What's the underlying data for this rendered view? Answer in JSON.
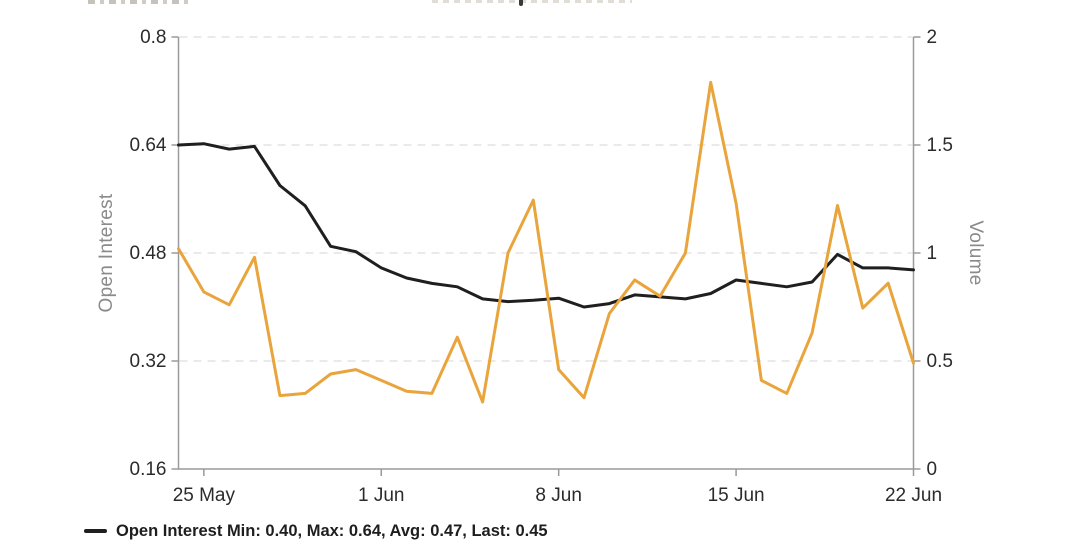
{
  "chart_data": {
    "type": "line",
    "x": [
      "24 May",
      "25 May",
      "26 May",
      "27 May",
      "28 May",
      "29 May",
      "30 May",
      "31 May",
      "1 Jun",
      "2 Jun",
      "3 Jun",
      "4 Jun",
      "5 Jun",
      "6 Jun",
      "7 Jun",
      "8 Jun",
      "9 Jun",
      "10 Jun",
      "11 Jun",
      "12 Jun",
      "13 Jun",
      "14 Jun",
      "15 Jun",
      "16 Jun",
      "17 Jun",
      "18 Jun",
      "19 Jun",
      "20 Jun",
      "21 Jun",
      "22 Jun"
    ],
    "series": [
      {
        "name": "Open Interest",
        "axis": "left",
        "color": "#1f1f1f",
        "stroke_width": 3,
        "values": [
          0.64,
          0.642,
          0.634,
          0.638,
          0.58,
          0.55,
          0.49,
          0.482,
          0.458,
          0.443,
          0.435,
          0.43,
          0.412,
          0.408,
          0.41,
          0.413,
          0.4,
          0.405,
          0.418,
          0.415,
          0.412,
          0.42,
          0.44,
          0.435,
          0.43,
          0.437,
          0.478,
          0.458,
          0.458,
          0.455
        ]
      },
      {
        "name": "Volume",
        "axis": "right",
        "color": "#e9a43c",
        "stroke_width": 3,
        "values": [
          1.02,
          0.82,
          0.76,
          0.98,
          0.34,
          0.35,
          0.44,
          0.46,
          0.41,
          0.36,
          0.35,
          0.61,
          0.31,
          1.0,
          1.245,
          0.46,
          0.33,
          0.72,
          0.875,
          0.8,
          1.0,
          1.79,
          1.23,
          0.41,
          0.35,
          0.63,
          1.22,
          0.745,
          0.86,
          0.49
        ]
      }
    ],
    "left_axis": {
      "label": "Open Interest",
      "range": [
        0.16,
        0.8
      ],
      "ticks": [
        0.8,
        0.64,
        0.48,
        0.32,
        0.16
      ],
      "tick_labels": [
        "0.8",
        "0.64",
        "0.48",
        "0.32",
        "0.16"
      ]
    },
    "right_axis": {
      "label": "Volume",
      "range": [
        0,
        2
      ],
      "ticks": [
        2,
        1.5,
        1,
        0.5,
        0
      ],
      "tick_labels": [
        "2",
        "1.5",
        "1",
        "0.5",
        "0"
      ]
    },
    "x_axis": {
      "tick_labels": [
        "25 May",
        "1 Jun",
        "8 Jun",
        "15 Jun",
        "22 Jun"
      ],
      "tick_day_index": [
        1,
        8,
        15,
        22,
        29
      ]
    },
    "grid": {
      "horizontal": true,
      "style": "dashed",
      "color": "#e4e4e4"
    },
    "axis_color": "#9a9a9a",
    "tick_label_color": "#2b2b2b",
    "legend_position": "bottom-left"
  },
  "legend": {
    "items": [
      {
        "series": "Open Interest",
        "marker_color": "#1f1f1f",
        "text": "Open Interest Min: 0.40, Max: 0.64, Avg: 0.47, Last: 0.45"
      }
    ]
  }
}
